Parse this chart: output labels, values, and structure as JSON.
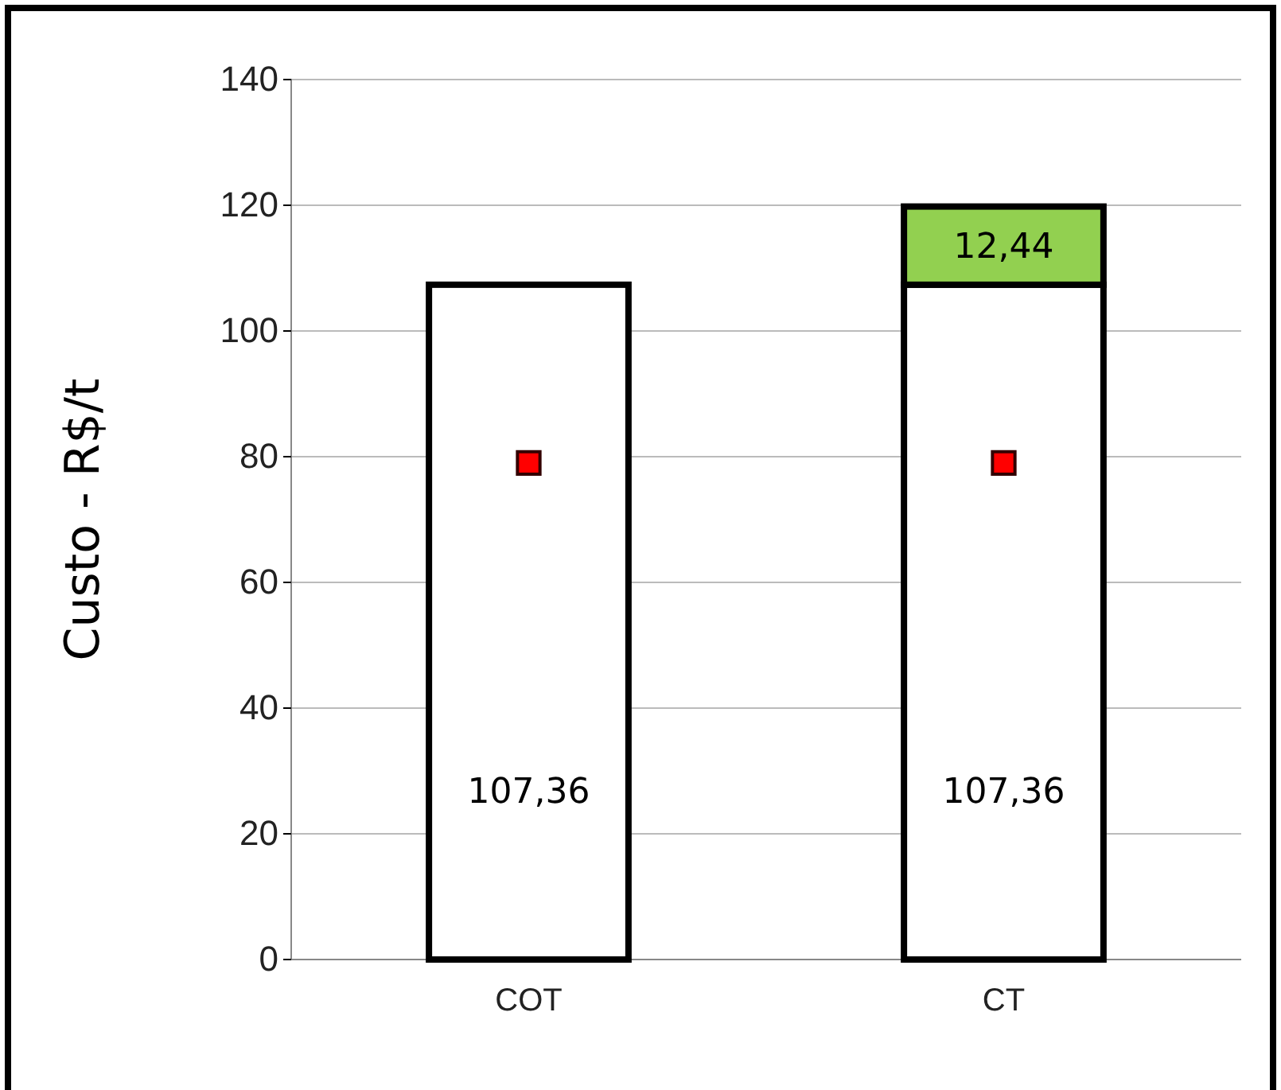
{
  "chart_data": {
    "type": "bar",
    "stacked": true,
    "ylabel": "Custo - R$/t",
    "categories": [
      "COT",
      "CT"
    ],
    "ylim": [
      0,
      140
    ],
    "yticks": [
      0,
      20,
      40,
      60,
      80,
      100,
      120,
      140
    ],
    "grid": "y",
    "series": [
      {
        "color": "#ffffff",
        "values": [
          107.36,
          107.36
        ],
        "value_labels": [
          "107,36",
          "107,36"
        ]
      },
      {
        "color": "#92d050",
        "values": [
          null,
          12.44
        ],
        "value_labels": [
          null,
          "12,44"
        ]
      },
      {
        "type": "scatter",
        "marker": "square",
        "color": "#ff0000",
        "x": [
          "COT",
          "CT"
        ],
        "values": [
          79,
          79
        ]
      }
    ]
  }
}
